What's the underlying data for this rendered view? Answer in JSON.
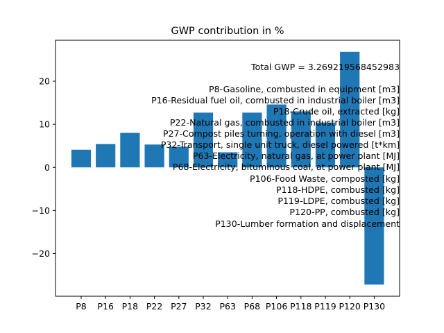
{
  "chart_data": {
    "type": "bar",
    "title": "GWP contribution in %",
    "xlabel": "",
    "ylabel": "",
    "categories": [
      "P8",
      "P16",
      "P18",
      "P22",
      "P27",
      "P32",
      "P63",
      "P68",
      "P106",
      "P118",
      "P119",
      "P120",
      "P130"
    ],
    "values": [
      4.1,
      5.4,
      8.0,
      5.3,
      4.8,
      12.7,
      3.5,
      12.7,
      14.6,
      13.0,
      10.4,
      26.8,
      -27.2
    ],
    "bar_color": "#1f77b4",
    "ylim": [
      -29.9,
      29.5
    ],
    "yticks": [
      -20,
      -10,
      0,
      10,
      20
    ],
    "ytick_labels": [
      "−20",
      "−10",
      "0",
      "10",
      "20"
    ],
    "grid": false,
    "annotations": [
      "Total GWP = 3.269219568452983",
      "P8-Gasoline, combusted in equipment [m3]",
      "P16-Residual fuel oil, combusted in industrial boiler [m3]",
      "P18-Crude oil, extracted [kg]",
      "P22-Natural gas, combusted in industrial boiler [m3]",
      "P27-Compost piles turning, operation with diesel [m3]",
      "P32-Transport, single unit truck, diesel powered [t*km]",
      "P63-Electricity, natural gas, at power plant [MJ]",
      "P68-Electricity, bituminous coal, at power plant [MJ]",
      "P106-Food Waste, composted [kg]",
      "P118-HDPE, combusted [kg]",
      "P119-LDPE, combusted [kg]",
      "P120-PP, combusted [kg]",
      "P130-Lumber formation and displacement"
    ]
  }
}
